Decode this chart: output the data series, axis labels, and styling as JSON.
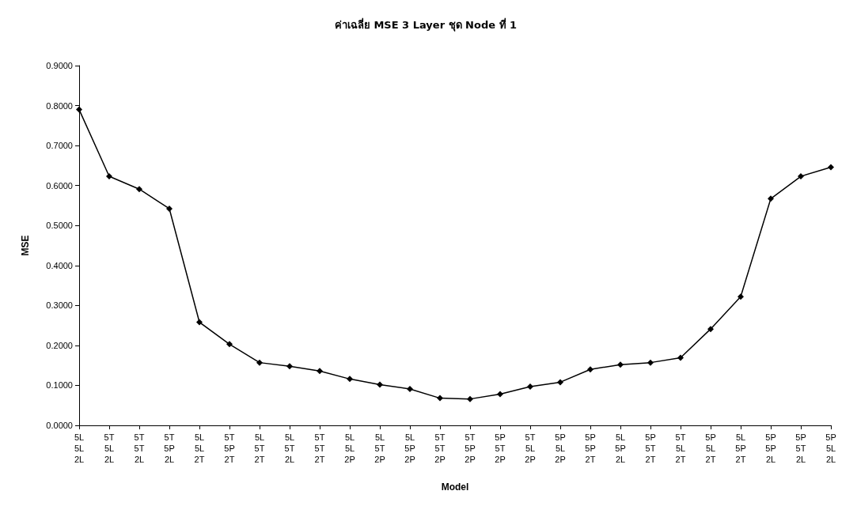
{
  "chart_data": {
    "type": "line",
    "title": "ค่าเฉลี่ย MSE 3 Layer ชุด Node ที่ 1",
    "xlabel": "Model",
    "ylabel": "MSE",
    "categories": [
      "5L\n5L\n2L",
      "5T\n5L\n2L",
      "5T\n5T\n2L",
      "5T\n5P\n2L",
      "5L\n5L\n2T",
      "5T\n5P\n2T",
      "5L\n5T\n2T",
      "5L\n5T\n2L",
      "5T\n5T\n2T",
      "5L\n5L\n2P",
      "5L\n5T\n2P",
      "5L\n5P\n2P",
      "5T\n5T\n2P",
      "5T\n5P\n2P",
      "5P\n5T\n2P",
      "5T\n5L\n2P",
      "5P\n5L\n2P",
      "5P\n5P\n2T",
      "5L\n5P\n2L",
      "5P\n5T\n2T",
      "5T\n5L\n2T",
      "5P\n5L\n2T",
      "5L\n5P\n2T",
      "5P\n5P\n2L",
      "5P\n5T\n2L",
      "5P\n5L\n2L"
    ],
    "series": [
      {
        "color": "#000000",
        "values": [
          0.79,
          0.623,
          0.591,
          0.542,
          0.258,
          0.203,
          0.157,
          0.148,
          0.136,
          0.116,
          0.102,
          0.091,
          0.068,
          0.066,
          0.078,
          0.097,
          0.108,
          0.14,
          0.152,
          0.157,
          0.169,
          0.241,
          0.322,
          0.567,
          0.623,
          0.646
        ]
      }
    ],
    "ylim": [
      0,
      0.9
    ],
    "yticks": [
      {
        "value": 0,
        "label": "0.0000"
      },
      {
        "value": 0.1,
        "label": "0.1000"
      },
      {
        "value": 0.2,
        "label": "0.2000"
      },
      {
        "value": 0.3,
        "label": "0.3000"
      },
      {
        "value": 0.4,
        "label": "0.4000"
      },
      {
        "value": 0.5,
        "label": "0.5000"
      },
      {
        "value": 0.6,
        "label": "0.6000"
      },
      {
        "value": 0.7,
        "label": "0.7000"
      },
      {
        "value": 0.8,
        "label": "0.8000"
      },
      {
        "value": 0.9,
        "label": "0.9000"
      }
    ],
    "marker": "diamond",
    "line_style": "solid",
    "grid": false
  }
}
